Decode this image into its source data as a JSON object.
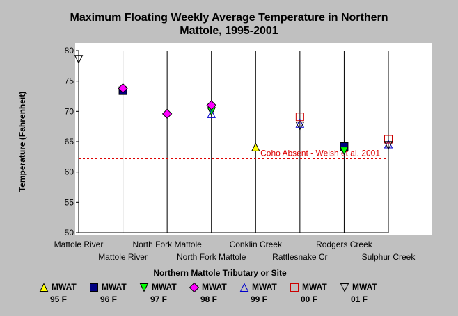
{
  "chart_data": {
    "type": "scatter",
    "title": "Maximum Floating Weekly Average Temperature in Northern Mattole, 1995-2001",
    "title_lines": [
      "Maximum Floating Weekly Average Temperature in Northern",
      "Mattole, 1995-2001"
    ],
    "xlabel": "Northern Mattole Tributary or Site",
    "ylabel": "Temperature (Fahrenheit)",
    "ylim": [
      50,
      80
    ],
    "yticks": [
      50,
      55,
      60,
      65,
      70,
      75,
      80
    ],
    "categories": [
      "Mattole River",
      "Mattole River",
      "North Fork Mattole",
      "North Fork Mattole",
      "Conklin Creek",
      "Rattlesnake Cr",
      "Rodgers Creek",
      "Sulphur Creek"
    ],
    "grid": "vertical",
    "legend_position": "bottom",
    "reference_line": {
      "value": 62.2,
      "label": "Coho Absent - Welsh et al. 2001",
      "color": "#dd0000"
    },
    "series": [
      {
        "name": "MWAT",
        "sub": "95 F",
        "marker": "triangle-up",
        "fill": "#ffff00",
        "stroke": "#000000",
        "points": [
          {
            "x": "Conklin Creek",
            "y": 64.1
          }
        ]
      },
      {
        "name": "MWAT",
        "sub": "96 F",
        "marker": "square",
        "fill": "#000080",
        "stroke": "#000000",
        "points": [
          {
            "x": "Mattole River",
            "i": 1,
            "y": 73.4
          },
          {
            "x": "Rodgers Creek",
            "y": 64.2
          }
        ]
      },
      {
        "name": "MWAT",
        "sub": "97 F",
        "marker": "triangle-down",
        "fill": "#00ff00",
        "stroke": "#000000",
        "points": [
          {
            "x": "North Fork Mattole",
            "i": 3,
            "y": 70.0
          },
          {
            "x": "Rodgers Creek",
            "y": 63.5
          }
        ]
      },
      {
        "name": "MWAT",
        "sub": "98 F",
        "marker": "diamond",
        "fill": "#ff00ff",
        "stroke": "#000000",
        "points": [
          {
            "x": "Mattole River",
            "i": 1,
            "y": 73.8
          },
          {
            "x": "North Fork Mattole",
            "i": 2,
            "y": 69.6
          },
          {
            "x": "North Fork Mattole",
            "i": 3,
            "y": 71.0
          }
        ]
      },
      {
        "name": "MWAT",
        "sub": "99 F",
        "marker": "triangle-up-open",
        "fill": "none",
        "stroke": "#0000cc",
        "points": [
          {
            "x": "North Fork Mattole",
            "i": 3,
            "y": 69.6
          },
          {
            "x": "Rattlesnake Cr",
            "y": 68.0
          },
          {
            "x": "Sulphur Creek",
            "y": 64.6
          }
        ]
      },
      {
        "name": "MWAT",
        "sub": "00 F",
        "marker": "square-open",
        "fill": "none",
        "stroke": "#cc0000",
        "points": [
          {
            "x": "Rattlesnake Cr",
            "y": 69.1
          },
          {
            "x": "Sulphur Creek",
            "y": 65.4
          }
        ]
      },
      {
        "name": "MWAT",
        "sub": "01 F",
        "marker": "triangle-down-open",
        "fill": "none",
        "stroke": "#000000",
        "points": [
          {
            "x": "Mattole River",
            "i": 0,
            "y": 78.6
          },
          {
            "x": "Rattlesnake Cr",
            "y": 67.6
          },
          {
            "x": "Sulphur Creek",
            "y": 64.4
          }
        ]
      }
    ]
  }
}
